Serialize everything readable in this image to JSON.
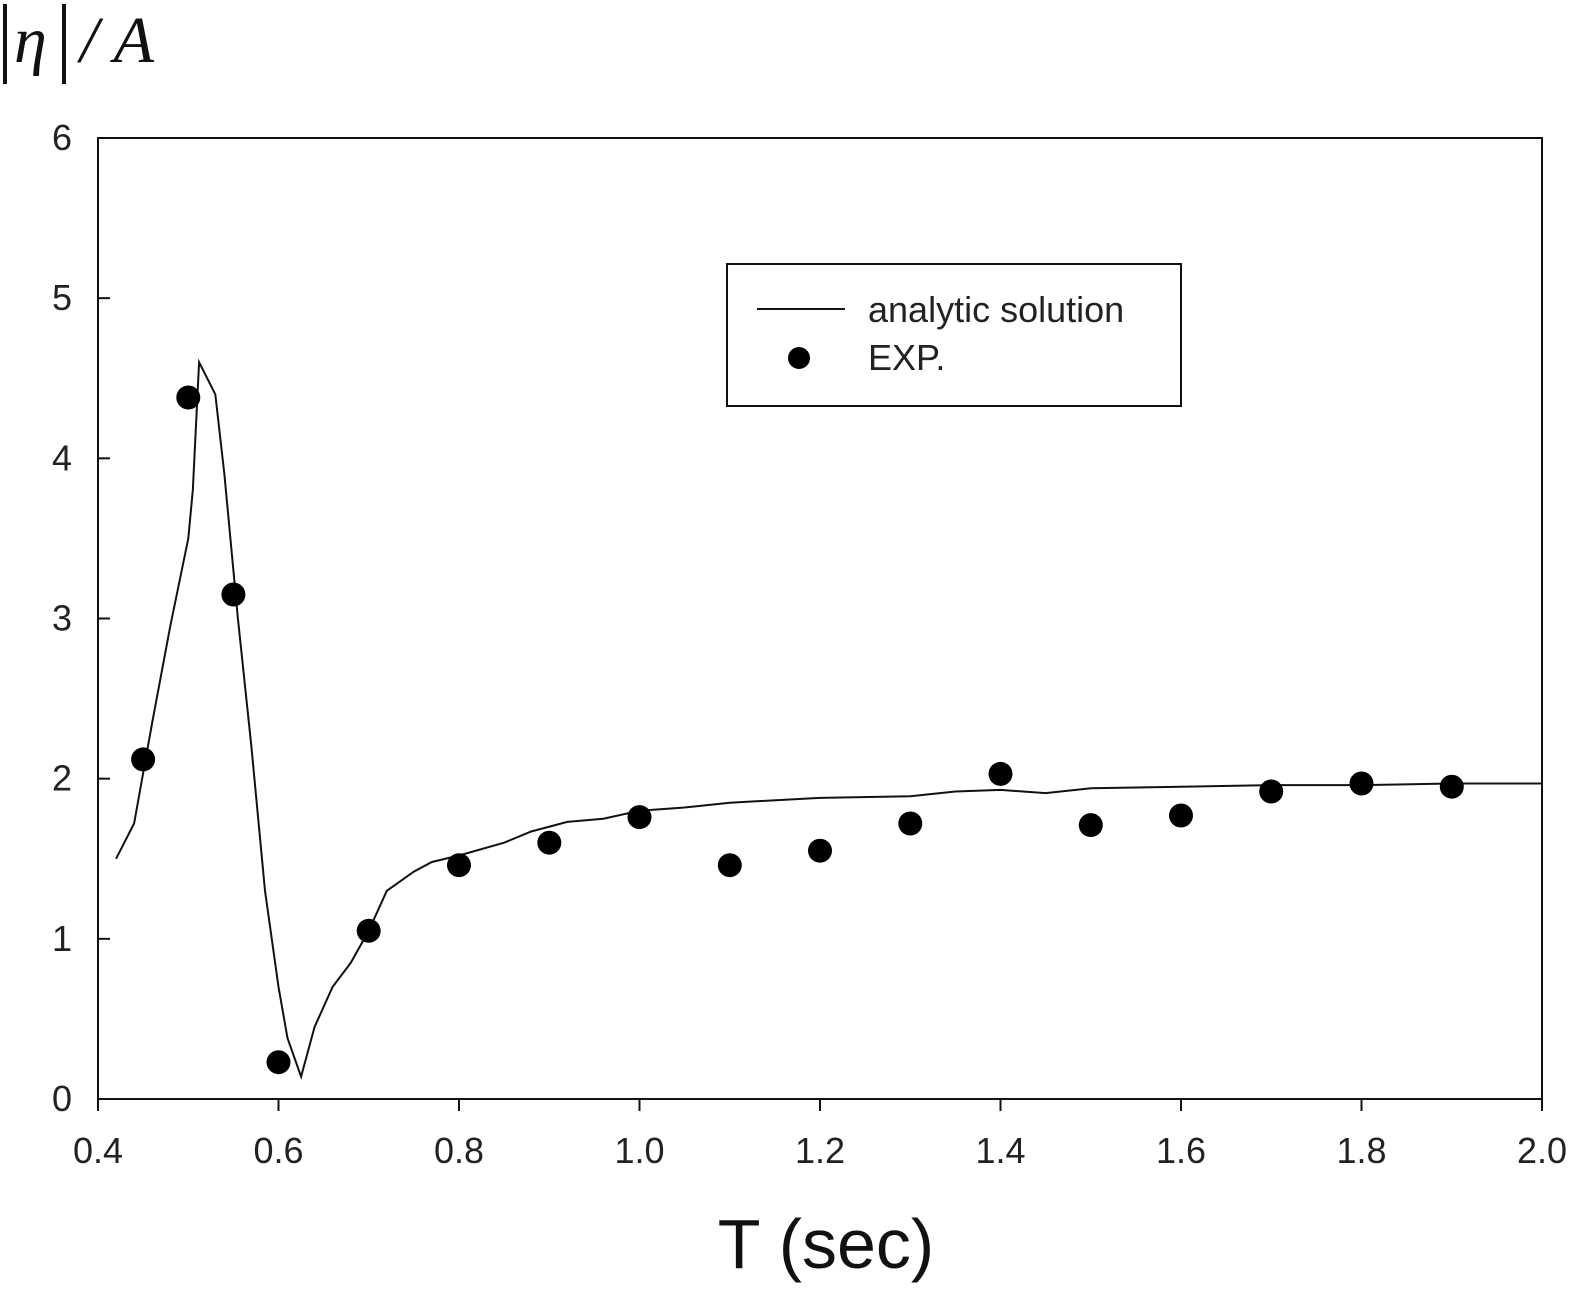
{
  "chart_data": {
    "type": "line",
    "xlabel": "T (sec)",
    "ylabel": {
      "symbol": "η",
      "suffix": "/ A"
    },
    "xlim": [
      0.4,
      2.0
    ],
    "ylim": [
      0,
      6
    ],
    "xticks": [
      "0.4",
      "0.6",
      "0.8",
      "1.0",
      "1.2",
      "1.4",
      "1.6",
      "1.8",
      "2.0"
    ],
    "yticks": [
      "0",
      "1",
      "2",
      "3",
      "4",
      "5",
      "6"
    ],
    "grid": false,
    "legend_position": "top-right",
    "series": [
      {
        "name": "analytic solution",
        "style": "line",
        "points": [
          [
            0.42,
            1.5
          ],
          [
            0.44,
            1.72
          ],
          [
            0.46,
            2.35
          ],
          [
            0.48,
            2.95
          ],
          [
            0.5,
            3.5
          ],
          [
            0.505,
            3.8
          ],
          [
            0.512,
            4.6
          ],
          [
            0.53,
            4.4
          ],
          [
            0.54,
            3.9
          ],
          [
            0.555,
            3.0
          ],
          [
            0.57,
            2.2
          ],
          [
            0.585,
            1.3
          ],
          [
            0.6,
            0.7
          ],
          [
            0.61,
            0.38
          ],
          [
            0.625,
            0.14
          ],
          [
            0.64,
            0.45
          ],
          [
            0.66,
            0.7
          ],
          [
            0.68,
            0.85
          ],
          [
            0.7,
            1.05
          ],
          [
            0.72,
            1.3
          ],
          [
            0.75,
            1.42
          ],
          [
            0.77,
            1.48
          ],
          [
            0.8,
            1.52
          ],
          [
            0.85,
            1.6
          ],
          [
            0.88,
            1.67
          ],
          [
            0.92,
            1.73
          ],
          [
            0.96,
            1.75
          ],
          [
            1.0,
            1.8
          ],
          [
            1.05,
            1.82
          ],
          [
            1.1,
            1.85
          ],
          [
            1.2,
            1.88
          ],
          [
            1.3,
            1.89
          ],
          [
            1.35,
            1.92
          ],
          [
            1.4,
            1.93
          ],
          [
            1.45,
            1.91
          ],
          [
            1.5,
            1.94
          ],
          [
            1.6,
            1.95
          ],
          [
            1.7,
            1.96
          ],
          [
            1.8,
            1.96
          ],
          [
            1.9,
            1.97
          ],
          [
            2.0,
            1.97
          ]
        ]
      },
      {
        "name": "EXP.",
        "style": "points",
        "points": [
          [
            0.45,
            2.12
          ],
          [
            0.5,
            4.38
          ],
          [
            0.55,
            3.15
          ],
          [
            0.6,
            0.23
          ],
          [
            0.7,
            1.05
          ],
          [
            0.8,
            1.46
          ],
          [
            0.9,
            1.6
          ],
          [
            1.0,
            1.76
          ],
          [
            1.1,
            1.46
          ],
          [
            1.2,
            1.55
          ],
          [
            1.3,
            1.72
          ],
          [
            1.4,
            2.03
          ],
          [
            1.5,
            1.71
          ],
          [
            1.6,
            1.77
          ],
          [
            1.7,
            1.92
          ],
          [
            1.8,
            1.97
          ],
          [
            1.9,
            1.95
          ]
        ]
      }
    ]
  }
}
